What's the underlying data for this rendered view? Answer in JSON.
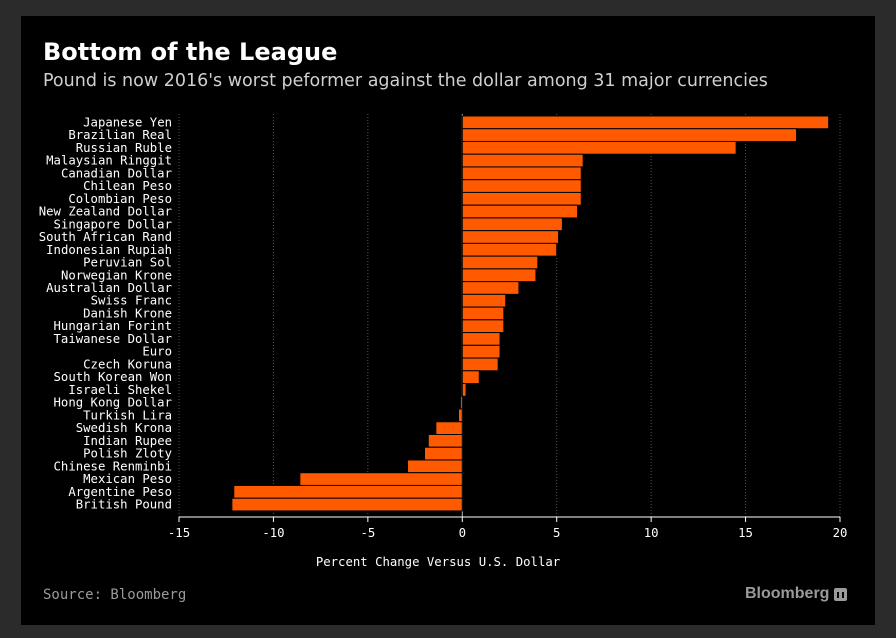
{
  "header": {
    "title": "Bottom of the League",
    "subtitle": "Pound is now 2016's worst peformer against the dollar among 31 major currencies"
  },
  "footer": {
    "source": "Source: Bloomberg",
    "brand": "Bloomberg"
  },
  "colors": {
    "background": "#000000",
    "bar": "#ff5a00",
    "bar_edge": "#000000",
    "text": "#ffffff",
    "grid": "#555555"
  },
  "chart_data": {
    "type": "bar",
    "orientation": "horizontal",
    "title": "Bottom of the League",
    "subtitle": "Pound is now 2016's worst peformer against the dollar among 31 major currencies",
    "xlabel": "Percent Change Versus U.S. Dollar",
    "ylabel": "",
    "xlim": [
      -15,
      20
    ],
    "xticks": [
      -15,
      -10,
      -5,
      0,
      5,
      10,
      15,
      20
    ],
    "grid": "vertical dotted",
    "categories": [
      "Japanese Yen",
      "Brazilian Real",
      "Russian Ruble",
      "Malaysian Ringgit",
      "Canadian Dollar",
      "Chilean Peso",
      "Colombian Peso",
      "New Zealand Dollar",
      "Singapore Dollar",
      "South African Rand",
      "Indonesian Rupiah",
      "Peruvian Sol",
      "Norwegian Krone",
      "Australian Dollar",
      "Swiss Franc",
      "Danish Krone",
      "Hungarian Forint",
      "Taiwanese Dollar",
      "Euro",
      "Czech Koruna",
      "South Korean Won",
      "Israeli Shekel",
      "Hong Kong Dollar",
      "Turkish Lira",
      "Swedish Krona",
      "Indian Rupee",
      "Polish Zloty",
      "Chinese Renminbi",
      "Mexican Peso",
      "Argentine Peso",
      "British Pound"
    ],
    "values": [
      19.4,
      17.7,
      14.5,
      6.4,
      6.3,
      6.3,
      6.3,
      6.1,
      5.3,
      5.1,
      5.0,
      4.0,
      3.9,
      3.0,
      2.3,
      2.2,
      2.2,
      2.0,
      2.0,
      1.9,
      0.9,
      0.2,
      -0.1,
      -0.2,
      -1.4,
      -1.8,
      -2.0,
      -2.9,
      -8.6,
      -12.1,
      -12.2
    ]
  }
}
